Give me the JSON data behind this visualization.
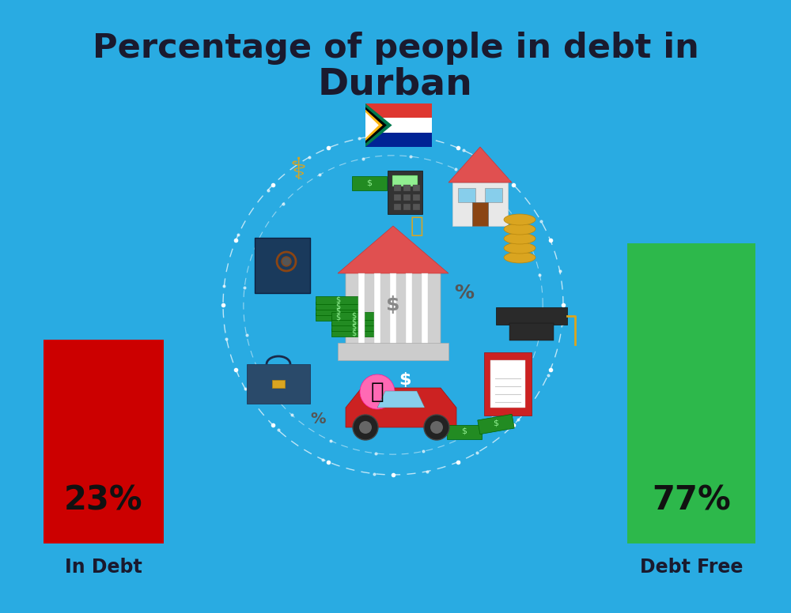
{
  "title_line1": "Percentage of people in debt in",
  "title_line2": "Durban",
  "background_color": "#29ABE2",
  "bar1_label": "In Debt",
  "bar1_value": 23,
  "bar1_pct": "23%",
  "bar1_color": "#CC0000",
  "bar2_label": "Debt Free",
  "bar2_value": 77,
  "bar2_pct": "77%",
  "bar2_color": "#2DB84B",
  "label_color": "#1a1a2e",
  "pct_color": "#111111",
  "title_color": "#1a1a2e",
  "illus_circle_color": "#29ABE2",
  "illus_ring_color": "#ffffff"
}
